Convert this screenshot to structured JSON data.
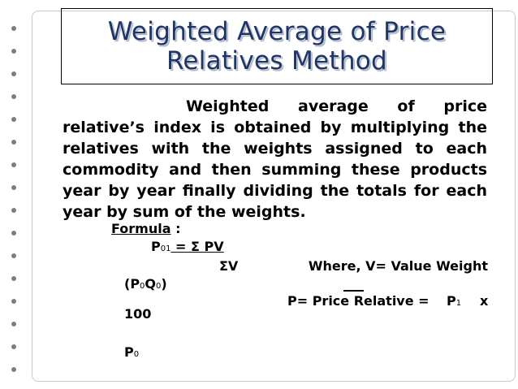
{
  "slide": {
    "title_line1": "Weighted Average of Price",
    "title_line2": "Relatives Method",
    "body": "Weighted average of price relative’s index is obtained by multiplying the relatives with the weights assigned to each commodity and then summing these products year by year finally dividing the totals for each year by sum of the weights."
  },
  "formula": {
    "label": "Formula",
    "colon": ":",
    "p": "P",
    "p_sub": "01",
    "eq_sigma_pv": " = Σ PV",
    "sigma_v": "ΣV",
    "where": "Where,  V=  Value  Weight",
    "p0q0_open": "(P",
    "p0q0_sub1": "0",
    "p0q0_q": "Q",
    "p0q0_sub2": "0",
    "p0q0_close": ")",
    "relative_label": "P=  Price  Relative  =",
    "p1": "P",
    "p1_sub": "1",
    "times": "x",
    "hundred": "100",
    "p0": "P",
    "p0_sub": "0"
  }
}
